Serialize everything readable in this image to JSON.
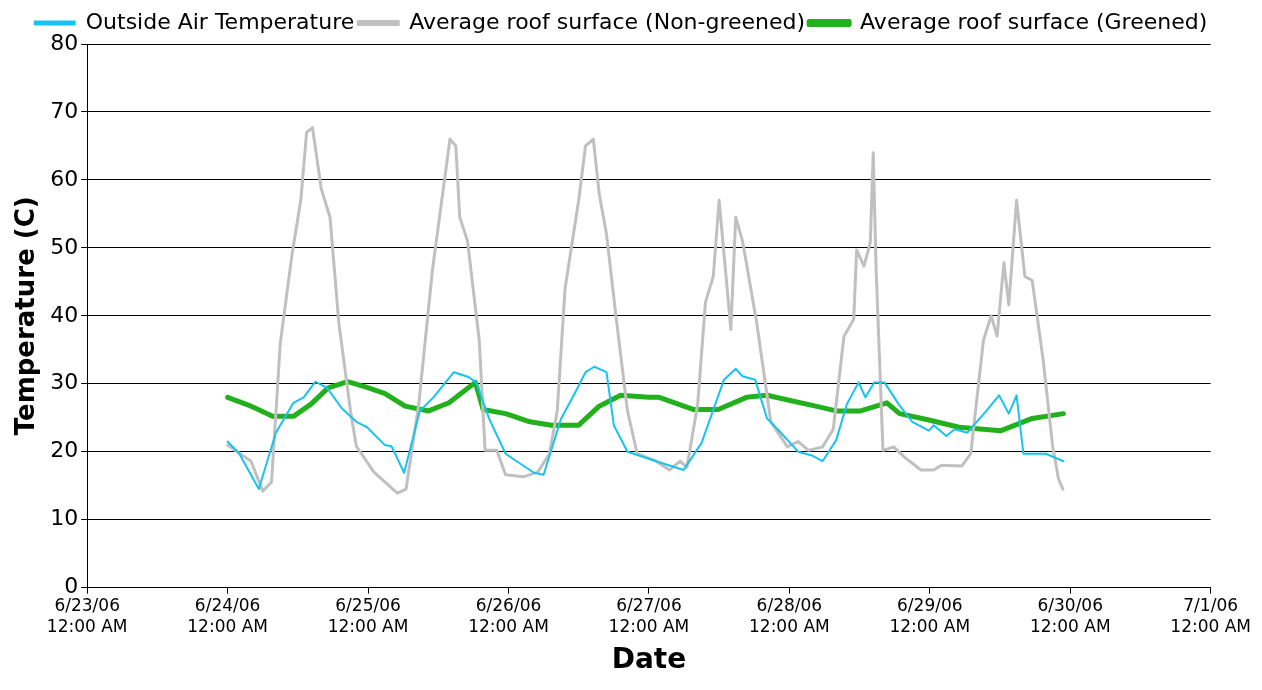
{
  "chart_data": {
    "type": "line",
    "xlabel": "Date",
    "ylabel": "Temperature (C)",
    "xlim": [
      "--06-23T00:00",
      "--07-01T00:00"
    ],
    "xticks": [
      {
        "value": "--06-23T00:00",
        "label": "6/23/06\n12:00 AM"
      },
      {
        "value": "--06-24T00:00",
        "label": "6/24/06\n12:00 AM"
      },
      {
        "value": "--06-25T00:00",
        "label": "6/25/06\n12:00 AM"
      },
      {
        "value": "--06-26T00:00",
        "label": "6/26/06\n12:00 AM"
      },
      {
        "value": "--06-27T00:00",
        "label": "6/27/06\n12:00 AM"
      },
      {
        "value": "--06-28T00:00",
        "label": "6/28/06\n12:00 AM"
      },
      {
        "value": "--06-29T00:00",
        "label": "6/29/06\n12:00 AM"
      },
      {
        "value": "--06-30T00:00",
        "label": "6/30/06\n12:00 AM"
      },
      {
        "value": "--07-01T00:00",
        "label": "7/1/06\n12:00 AM"
      }
    ],
    "ylim": [
      0,
      80
    ],
    "yticks": [
      0,
      10,
      20,
      30,
      40,
      50,
      60,
      70,
      80
    ],
    "grid": "y",
    "legend": "top",
    "marker": "none",
    "line_style": "solid",
    "series": [
      {
        "name": "Outside Air Temperature",
        "color": "#19c3f0",
        "x": [
          "--06-24T00:00",
          "--06-24T02:00",
          "--06-24T05:20",
          "--06-24T08:15",
          "--06-24T11:15",
          "--06-24T13:00",
          "--06-24T15:00",
          "--06-24T17:00",
          "--06-24T19:30",
          "--06-24T22:00",
          "--06-24T23:50",
          "--06-25T02:50",
          "--06-25T04:00",
          "--06-25T06:10",
          "--06-25T08:50",
          "--06-25T11:10",
          "--06-25T14:40",
          "--06-25T17:10",
          "--06-25T18:30",
          "--06-25T20:40",
          "--06-25T23:30",
          "--06-26T04:20",
          "--06-26T06:00",
          "--06-26T09:00",
          "--06-26T11:20",
          "--06-26T13:10",
          "--06-26T14:40",
          "--06-26T16:45",
          "--06-26T18:00",
          "--06-26T20:20",
          "--06-27T01:15",
          "--06-27T05:55",
          "--06-27T09:00",
          "--06-27T12:50",
          "--06-27T14:50",
          "--06-27T16:00",
          "--06-27T18:10",
          "--06-27T20:10",
          "--06-27T22:00",
          "--06-28T01:30",
          "--06-28T04:00",
          "--06-28T05:40",
          "--06-28T08:00",
          "--06-28T09:50",
          "--06-28T11:50",
          "--06-28T13:00",
          "--06-28T14:30",
          "--06-28T16:15",
          "--06-28T18:40",
          "--06-28T21:00",
          "--06-28T23:50",
          "--06-29T00:40",
          "--06-29T02:50",
          "--06-29T04:15",
          "--06-29T06:25",
          "--06-29T09:40",
          "--06-29T11:50",
          "--06-29T13:30",
          "--06-29T14:50",
          "--06-29T16:00",
          "--06-29T19:50",
          "--06-29T22:50"
        ],
        "values": [
          21.5,
          19.7,
          14.5,
          22.8,
          27.2,
          28,
          30.3,
          29.4,
          26.4,
          24.4,
          23.6,
          21,
          20.8,
          16.9,
          26,
          28,
          31.7,
          31,
          30.2,
          24.9,
          19.7,
          16.9,
          16.6,
          24.9,
          28.6,
          31.7,
          32.5,
          31.7,
          23.9,
          20,
          18.6,
          17.3,
          21.3,
          30.6,
          32.2,
          31.1,
          30.6,
          24.9,
          23.3,
          20,
          19.4,
          18.6,
          21.7,
          27,
          30.2,
          28,
          30.2,
          30.2,
          27,
          24.4,
          23.1,
          23.9,
          22.3,
          23.3,
          22.8,
          26,
          28.3,
          25.6,
          28.3,
          19.7,
          19.7,
          18.6
        ]
      },
      {
        "name": "Average roof surface (Non-greened)",
        "color": "#c0c0c0",
        "x": [
          "--06-24T00:00",
          "--06-24T04:00",
          "--06-24T06:00",
          "--06-24T07:30",
          "--06-24T09:00",
          "--06-24T11:00",
          "--06-24T12:30",
          "--06-24T13:30",
          "--06-24T14:30",
          "--06-24T16:00",
          "--06-24T17:30",
          "--06-24T19:00",
          "--06-24T21:00",
          "--06-24T22:00",
          "--06-25T01:00",
          "--06-25T05:00",
          "--06-25T06:30",
          "--06-25T08:40",
          "--06-25T11:00",
          "--06-25T14:00",
          "--06-25T15:00",
          "--06-25T15:40",
          "--06-25T17:00",
          "--06-25T19:00",
          "--06-25T20:00",
          "--06-25T22:00",
          "--06-25T23:30",
          "--06-26T02:30",
          "--06-26T05:00",
          "--06-26T07:00",
          "--06-26T08:20",
          "--06-26T09:40",
          "--06-26T12:00",
          "--06-26T13:10",
          "--06-26T14:30",
          "--06-26T15:30",
          "--06-26T16:45",
          "--06-26T18:30",
          "--06-26T20:20",
          "--06-26T22:00",
          "--06-27T01:15",
          "--06-27T03:30",
          "--06-27T05:20",
          "--06-27T06:30",
          "--06-27T08:20",
          "--06-27T09:40",
          "--06-27T11:00",
          "--06-27T12:00",
          "--06-27T14:00",
          "--06-27T14:50",
          "--06-27T16:00",
          "--06-27T18:25",
          "--06-27T20:50",
          "--06-27T23:40",
          "--06-28T01:30",
          "--06-28T03:15",
          "--06-28T05:40",
          "--06-28T07:30",
          "--06-28T09:20",
          "--06-28T11:00",
          "--06-28T11:30",
          "--06-28T12:45",
          "--06-28T13:50",
          "--06-28T14:20",
          "--06-28T14:50",
          "--06-28T16:00",
          "--06-28T17:50",
          "--06-28T19:40",
          "--06-28T22:30",
          "--06-29T00:40",
          "--06-29T02:00",
          "--06-29T05:30",
          "--06-29T07:00",
          "--06-29T09:10",
          "--06-29T10:30",
          "--06-29T11:30",
          "--06-29T12:40",
          "--06-29T13:30",
          "--06-29T14:50",
          "--06-29T16:15",
          "--06-29T17:30",
          "--06-29T19:20",
          "--06-29T21:00",
          "--06-29T22:00",
          "--06-29T22:45"
        ],
        "values": [
          21,
          18.6,
          14.2,
          15.5,
          36,
          49,
          57,
          67,
          67.7,
          58.7,
          54.5,
          39,
          26,
          20.8,
          17,
          13.9,
          14.5,
          27,
          46.7,
          66,
          65,
          54.5,
          51,
          36.4,
          20.2,
          20.2,
          16.6,
          16.3,
          17,
          19.7,
          26,
          44,
          57,
          65,
          66,
          58,
          52,
          39,
          26,
          19.7,
          18.6,
          17.3,
          18.6,
          17.7,
          27,
          42,
          45.8,
          57,
          38,
          54.5,
          51,
          39,
          24.4,
          20.7,
          21.5,
          20.2,
          20.7,
          23.3,
          37,
          39.5,
          49.7,
          47.3,
          50.8,
          64,
          46.7,
          20.2,
          20.7,
          19.2,
          17.3,
          17.3,
          18,
          17.9,
          19.7,
          36.4,
          40,
          37,
          47.8,
          41.6,
          57,
          45.8,
          45.2,
          33.8,
          20.8,
          16,
          14.5
        ]
      },
      {
        "name": "Average roof surface (Greened)",
        "color": "#22b01c",
        "x": [
          "--06-24T00:00",
          "--06-24T04:00",
          "--06-24T07:40",
          "--06-24T11:15",
          "--06-24T14:15",
          "--06-24T17:10",
          "--06-24T20:30",
          "--06-24T23:40",
          "--06-25T02:50",
          "--06-25T06:20",
          "--06-25T10:20",
          "--06-25T13:50",
          "--06-25T18:20",
          "--06-25T19:40",
          "--06-25T23:30",
          "--06-26T03:40",
          "--06-26T07:20",
          "--06-26T12:00",
          "--06-26T15:30",
          "--06-26T19:10",
          "--06-27T00:00",
          "--06-27T01:45",
          "--06-27T07:40",
          "--06-27T11:50",
          "--06-27T16:40",
          "--06-27T20:10",
          "--06-28T00:20",
          "--06-28T04:30",
          "--06-28T08:00",
          "--06-28T12:10",
          "--06-28T16:40",
          "--06-28T18:50",
          "--06-28T23:40",
          "--06-29T05:00",
          "--06-29T12:10",
          "--06-29T17:30",
          "--06-29T22:50"
        ],
        "values": [
          28,
          26.7,
          25.2,
          25.2,
          27,
          29.4,
          30.3,
          29.5,
          28.6,
          26.7,
          26,
          27.2,
          30.2,
          26.2,
          25.6,
          24.4,
          23.9,
          23.9,
          26.7,
          28.3,
          28,
          28,
          26.2,
          26.2,
          28,
          28.3,
          27.5,
          26.7,
          26,
          26,
          27.2,
          25.6,
          24.7,
          23.6,
          23.1,
          24.9,
          25.6
        ]
      }
    ]
  }
}
